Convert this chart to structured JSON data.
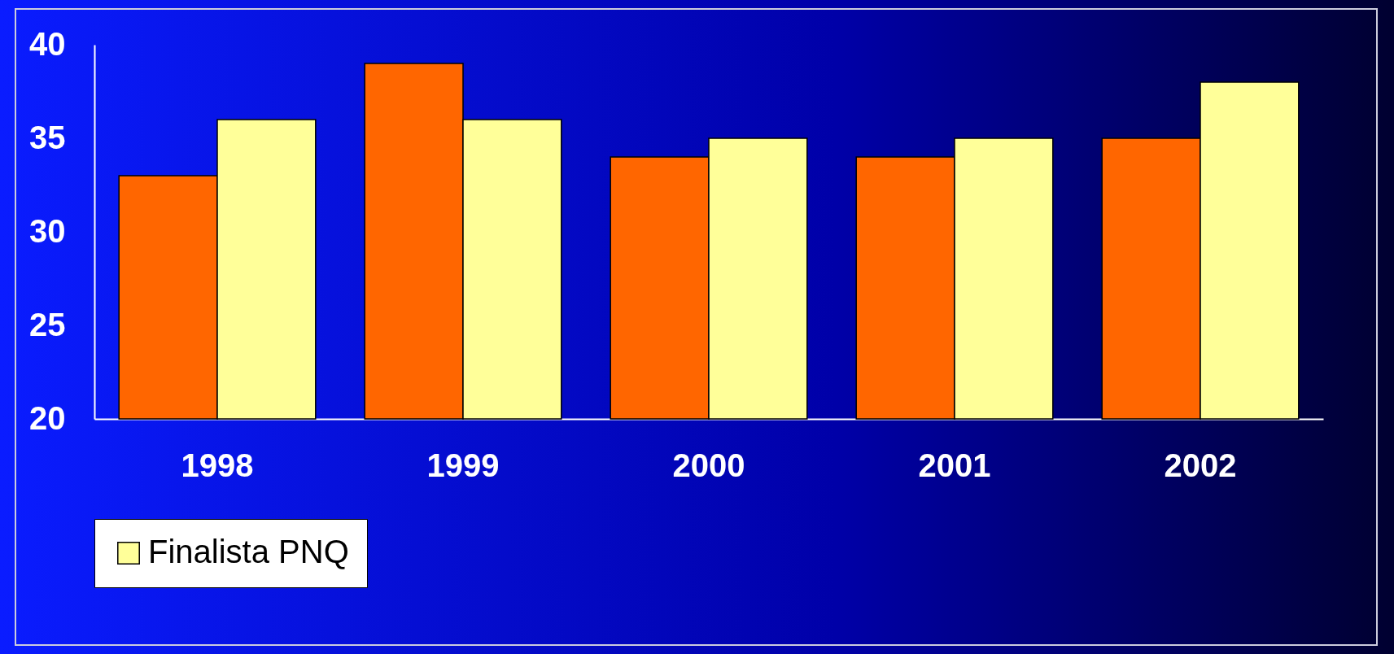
{
  "chart_data": {
    "type": "bar",
    "categories": [
      "1998",
      "1999",
      "2000",
      "2001",
      "2002"
    ],
    "series": [
      {
        "color": "#ff6600",
        "values": [
          33,
          39,
          34,
          34,
          35
        ]
      },
      {
        "name": "Finalista PNQ",
        "color": "#ffff99",
        "values": [
          36,
          36,
          35,
          35,
          38
        ]
      }
    ],
    "ylim": [
      20,
      40
    ],
    "yticks": [
      20,
      25,
      30,
      35,
      40
    ],
    "grid": false,
    "legend": "bottom"
  }
}
